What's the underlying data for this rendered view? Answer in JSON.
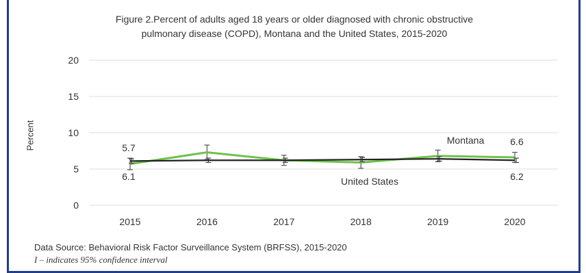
{
  "chart_data": {
    "type": "line",
    "title": "Figure 2.Percent of adults aged 18 years or older diagnosed with chronic obstructive\npulmonary disease (COPD), Montana and the United States, 2015-2020",
    "xlabel": "",
    "ylabel": "Percent",
    "ylim": [
      0,
      20
    ],
    "yticks": [
      0,
      5,
      10,
      15,
      20
    ],
    "categories": [
      "2015",
      "2016",
      "2017",
      "2018",
      "2019",
      "2020"
    ],
    "grid": true,
    "series": [
      {
        "name": "Montana",
        "color": "#6cc24a",
        "values": [
          5.7,
          7.3,
          6.2,
          5.9,
          6.8,
          6.6
        ],
        "ci_low": [
          4.9,
          6.3,
          5.5,
          5.1,
          6.0,
          5.9
        ],
        "ci_high": [
          6.5,
          8.3,
          6.9,
          6.7,
          7.6,
          7.3
        ]
      },
      {
        "name": "United States",
        "color": "#222222",
        "values": [
          6.1,
          6.2,
          6.2,
          6.3,
          6.4,
          6.2
        ],
        "ci_low": [
          5.8,
          5.9,
          5.9,
          6.0,
          6.1,
          5.9
        ],
        "ci_high": [
          6.4,
          6.5,
          6.5,
          6.6,
          6.7,
          6.5
        ]
      }
    ],
    "annotations": {
      "montana_first": "5.7",
      "montana_last": "6.6",
      "us_first": "6.1",
      "us_last": "6.2",
      "montana_label": "Montana",
      "us_label": "United States"
    }
  },
  "footnotes": {
    "source": "Data Source: Behavioral Risk Factor Surveillance System (BRFSS), 2015-2020",
    "ci": "I – indicates 95% confidence interval"
  }
}
